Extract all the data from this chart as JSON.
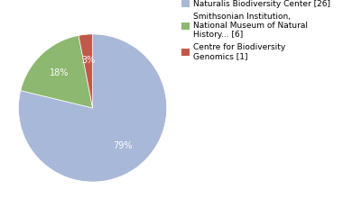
{
  "slices": [
    26,
    6,
    1
  ],
  "colors": [
    "#a8b8d8",
    "#8db870",
    "#c0594a"
  ],
  "startangle": 90,
  "counterclock": false,
  "pctdistance": 0.65,
  "background_color": "#ffffff",
  "legend_entries": [
    "Naturalis Biodiversity Center [26]",
    "Smithsonian Institution,\nNational Museum of Natural\nHistory... [6]",
    "Centre for Biodiversity\nGenomics [1]"
  ],
  "fontsize_legend": 6.5,
  "fontsize_pct": 7
}
